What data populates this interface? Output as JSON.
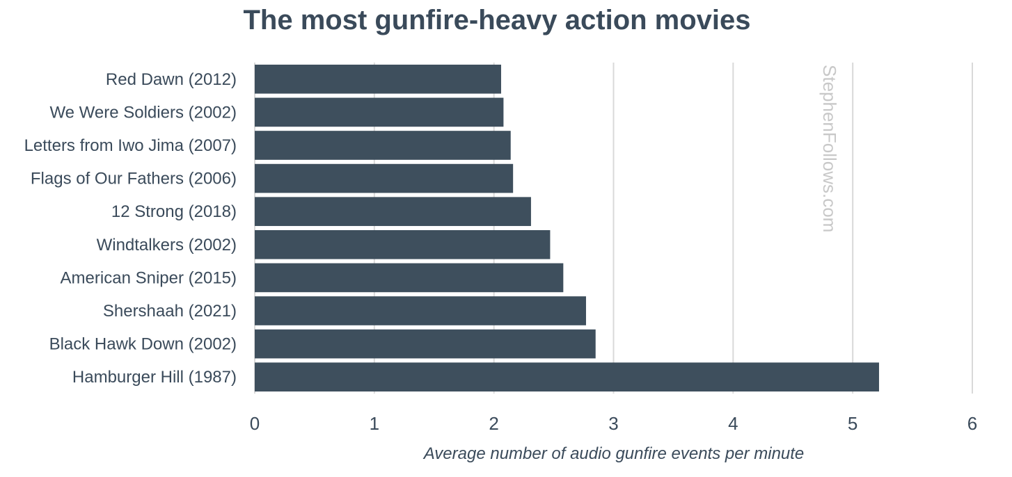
{
  "chart_data": {
    "type": "bar",
    "orientation": "horizontal",
    "title": "The most gunfire-heavy action movies",
    "xlabel": "Average number of audio gunfire events per minute",
    "ylabel": "",
    "xlim": [
      0,
      6
    ],
    "xticks": [
      0,
      1,
      2,
      3,
      4,
      5,
      6
    ],
    "grid": true,
    "bar_color": "#3e4f5d",
    "categories": [
      "Red Dawn (2012)",
      "We Were Soldiers (2002)",
      "Letters from Iwo Jima (2007)",
      "Flags of Our Fathers (2006)",
      "12 Strong (2018)",
      "Windtalkers (2002)",
      "American Sniper (2015)",
      "Shershaah (2021)",
      "Black Hawk Down (2002)",
      "Hamburger Hill (1987)"
    ],
    "values": [
      2.06,
      2.08,
      2.14,
      2.16,
      2.31,
      2.47,
      2.58,
      2.77,
      2.85,
      5.22
    ]
  },
  "watermark": "StephenFollows.com"
}
